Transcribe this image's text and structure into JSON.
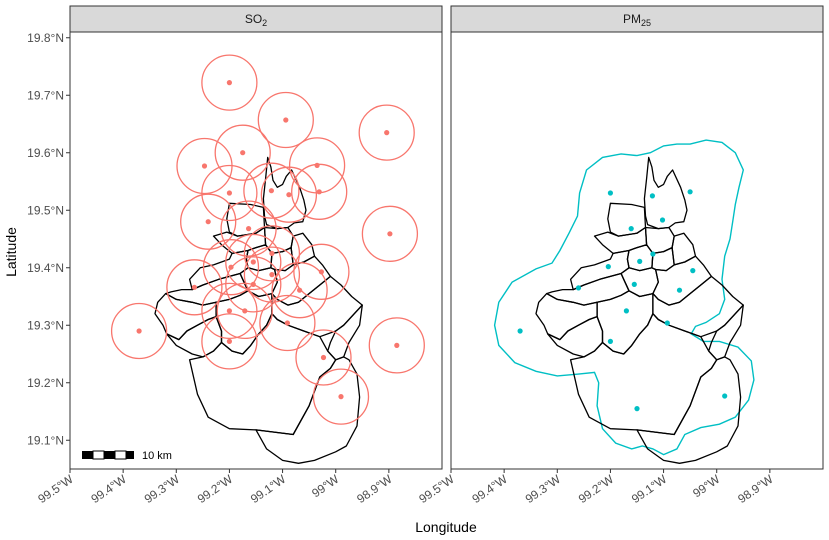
{
  "figure": {
    "xlabel": "Longitude",
    "ylabel": "Latitude",
    "x_ticks": [
      "99.5°W",
      "99.4°W",
      "99.3°W",
      "99.2°W",
      "99.1°W",
      "99°W",
      "98.9°W"
    ],
    "x_tick_values": [
      -99.5,
      -99.4,
      -99.3,
      -99.2,
      -99.1,
      -99.0,
      -98.9
    ],
    "y_ticks": [
      "19.8°N",
      "19.7°N",
      "19.6°N",
      "19.5°N",
      "19.4°N",
      "19.3°N",
      "19.2°N",
      "19.1°N"
    ],
    "y_tick_values": [
      19.8,
      19.7,
      19.6,
      19.5,
      19.4,
      19.3,
      19.2,
      19.1
    ],
    "xlim": [
      -99.5,
      -98.8
    ],
    "ylim": [
      19.05,
      19.81
    ],
    "scale_bar_label": "10 km"
  },
  "panels": [
    {
      "id": "so2",
      "strip_main": "SO",
      "strip_sub": "2",
      "color": "#F8766D",
      "buffer_km": 5,
      "stations": [
        {
          "lon": -99.2,
          "lat": 19.722
        },
        {
          "lon": -99.094,
          "lat": 19.657
        },
        {
          "lon": -98.904,
          "lat": 19.635
        },
        {
          "lon": -99.175,
          "lat": 19.6
        },
        {
          "lon": -99.247,
          "lat": 19.577
        },
        {
          "lon": -99.035,
          "lat": 19.578
        },
        {
          "lon": -99.2,
          "lat": 19.53
        },
        {
          "lon": -99.121,
          "lat": 19.534
        },
        {
          "lon": -99.088,
          "lat": 19.527
        },
        {
          "lon": -99.031,
          "lat": 19.532
        },
        {
          "lon": -99.24,
          "lat": 19.48
        },
        {
          "lon": -99.164,
          "lat": 19.468
        },
        {
          "lon": -98.898,
          "lat": 19.459
        },
        {
          "lon": -99.155,
          "lat": 19.41
        },
        {
          "lon": -99.12,
          "lat": 19.425
        },
        {
          "lon": -99.197,
          "lat": 19.401
        },
        {
          "lon": -99.12,
          "lat": 19.388
        },
        {
          "lon": -99.027,
          "lat": 19.393
        },
        {
          "lon": -99.266,
          "lat": 19.366
        },
        {
          "lon": -99.155,
          "lat": 19.371
        },
        {
          "lon": -99.068,
          "lat": 19.361
        },
        {
          "lon": -99.2,
          "lat": 19.325
        },
        {
          "lon": -99.171,
          "lat": 19.325
        },
        {
          "lon": -99.091,
          "lat": 19.304
        },
        {
          "lon": -99.37,
          "lat": 19.29
        },
        {
          "lon": -99.2,
          "lat": 19.272
        },
        {
          "lon": -98.885,
          "lat": 19.265
        },
        {
          "lon": -99.023,
          "lat": 19.244
        },
        {
          "lon": -98.99,
          "lat": 19.176
        }
      ]
    },
    {
      "id": "pm25",
      "strip_main": "PM",
      "strip_sub": "25",
      "color": "#00BFC4",
      "stations": [
        {
          "lon": -99.2,
          "lat": 19.53
        },
        {
          "lon": -99.121,
          "lat": 19.525
        },
        {
          "lon": -99.05,
          "lat": 19.532
        },
        {
          "lon": -99.161,
          "lat": 19.468
        },
        {
          "lon": -99.102,
          "lat": 19.483
        },
        {
          "lon": -99.145,
          "lat": 19.411
        },
        {
          "lon": -99.12,
          "lat": 19.424
        },
        {
          "lon": -99.204,
          "lat": 19.402
        },
        {
          "lon": -99.045,
          "lat": 19.395
        },
        {
          "lon": -99.26,
          "lat": 19.365
        },
        {
          "lon": -99.155,
          "lat": 19.371
        },
        {
          "lon": -99.07,
          "lat": 19.361
        },
        {
          "lon": -99.17,
          "lat": 19.325
        },
        {
          "lon": -99.093,
          "lat": 19.304
        },
        {
          "lon": -99.37,
          "lat": 19.29
        },
        {
          "lon": -99.2,
          "lat": 19.272
        },
        {
          "lon": -98.985,
          "lat": 19.177
        },
        {
          "lon": -99.15,
          "lat": 19.155
        }
      ]
    }
  ]
}
